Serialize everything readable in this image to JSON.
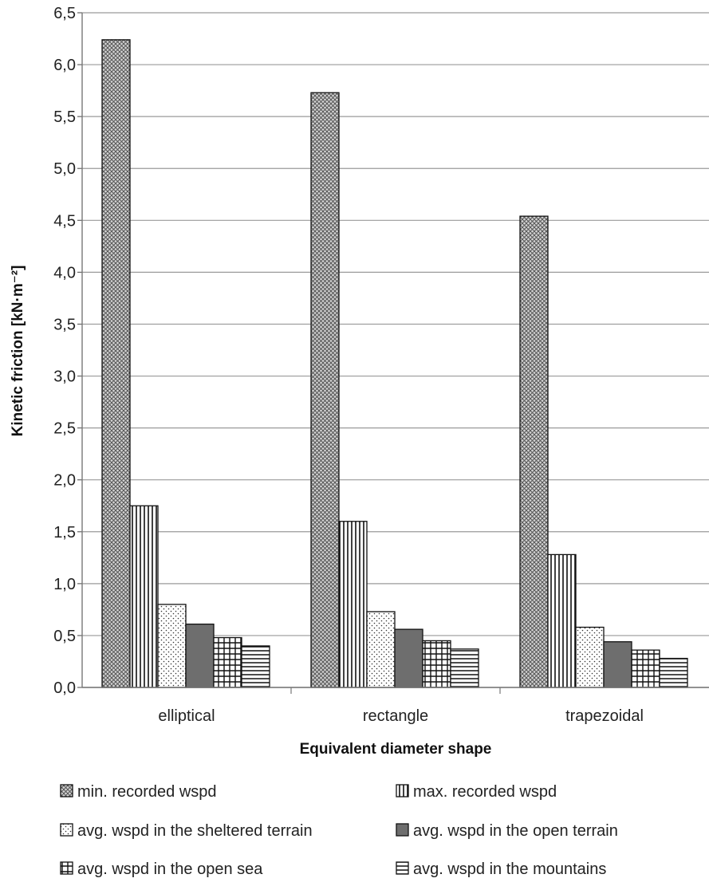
{
  "chart_data": {
    "type": "bar",
    "xlabel": "Equivalent diameter shape",
    "ylabel": "Kinetic friction [kN·m⁻²]",
    "ylim": [
      0,
      6.5
    ],
    "yticks": [
      "0,0",
      "0,5",
      "1,0",
      "1,5",
      "2,0",
      "2,5",
      "3,0",
      "3,5",
      "4,0",
      "4,5",
      "5,0",
      "5,5",
      "6,0",
      "6,5"
    ],
    "grid": true,
    "legend_position": "bottom",
    "categories": [
      "elliptical",
      "rectangle",
      "trapezoidal"
    ],
    "series": [
      {
        "name": "min. recorded wspd",
        "pattern": "crosshatch-dense",
        "values": [
          6.24,
          5.73,
          4.54
        ]
      },
      {
        "name": "max. recorded wspd",
        "pattern": "vertical-lines",
        "values": [
          1.75,
          1.6,
          1.28
        ]
      },
      {
        "name": "avg. wspd in the sheltered terrain",
        "pattern": "dots",
        "values": [
          0.8,
          0.73,
          0.58
        ]
      },
      {
        "name": "avg. wspd in the open terrain",
        "pattern": "solid-dark-gray",
        "values": [
          0.61,
          0.56,
          0.44
        ]
      },
      {
        "name": "avg. wspd in the open sea",
        "pattern": "grid",
        "values": [
          0.48,
          0.45,
          0.36
        ]
      },
      {
        "name": "avg. wspd in the mountains",
        "pattern": "horizontal-lines",
        "values": [
          0.4,
          0.37,
          0.28
        ]
      }
    ]
  }
}
